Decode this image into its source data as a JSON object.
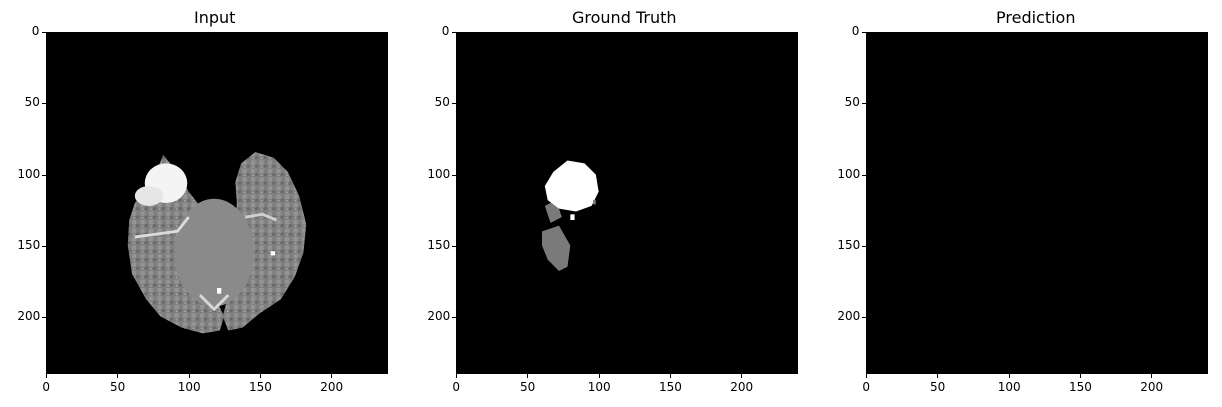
{
  "panels": [
    {
      "id": "input",
      "title": "Input"
    },
    {
      "id": "ground-truth",
      "title": "Ground Truth"
    },
    {
      "id": "prediction",
      "title": "Prediction"
    }
  ],
  "axes": {
    "x_ticks": [
      "0",
      "50",
      "100",
      "150",
      "200"
    ],
    "y_ticks": [
      "0",
      "50",
      "100",
      "150",
      "200"
    ]
  },
  "colors": {
    "background": "#000000",
    "figure": "#ffffff",
    "tissue_gray": "#8a8a8a",
    "tumor_core": "#ffffff",
    "tumor_edema": "#7a7a7a"
  }
}
